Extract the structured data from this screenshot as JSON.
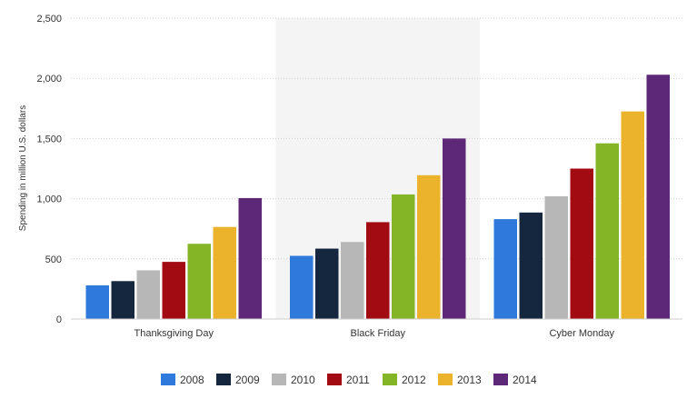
{
  "chart_data": {
    "type": "bar",
    "title": "",
    "xlabel": "",
    "ylabel": "Spending in million U.S. dollars",
    "ylim": [
      0,
      2500
    ],
    "yticks": [
      0,
      500,
      1000,
      1500,
      2000,
      2500
    ],
    "ytick_labels": [
      "0",
      "500",
      "1,000",
      "1,500",
      "2,000",
      "2,500"
    ],
    "grid": true,
    "legend_position": "bottom",
    "highlighted_category": "Black Friday",
    "categories": [
      "Thanksgiving Day",
      "Black Friday",
      "Cyber Monday"
    ],
    "series": [
      {
        "name": "2008",
        "color": "#2f78dc",
        "values": [
          280,
          525,
          830
        ]
      },
      {
        "name": "2009",
        "color": "#14273f",
        "values": [
          315,
          585,
          885
        ]
      },
      {
        "name": "2010",
        "color": "#b7b7b7",
        "values": [
          405,
          640,
          1020
        ]
      },
      {
        "name": "2011",
        "color": "#a30b12",
        "values": [
          475,
          805,
          1250
        ]
      },
      {
        "name": "2012",
        "color": "#84b527",
        "values": [
          625,
          1035,
          1460
        ]
      },
      {
        "name": "2013",
        "color": "#eab32b",
        "values": [
          765,
          1195,
          1725
        ]
      },
      {
        "name": "2014",
        "color": "#5d2878",
        "values": [
          1005,
          1500,
          2030
        ]
      }
    ]
  }
}
